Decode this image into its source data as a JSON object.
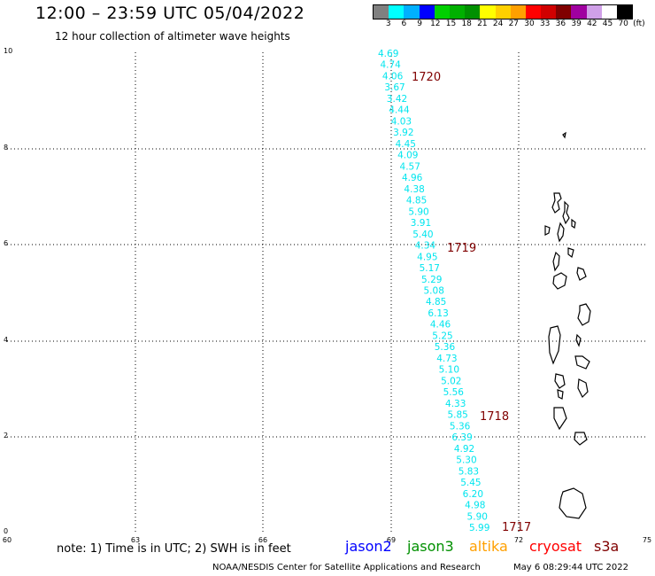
{
  "header": {
    "title": "12:00 – 23:59 UTC 05/04/2022",
    "subtitle": "12 hour collection of altimeter wave heights"
  },
  "color_scale": {
    "labels": [
      "3",
      "6",
      "9",
      "12",
      "15",
      "18",
      "21",
      "24",
      "27",
      "30",
      "33",
      "36",
      "39",
      "42",
      "45",
      "70",
      "(ft)"
    ],
    "colors": [
      "#808080",
      "#00ffff",
      "#00b0ff",
      "#0000ff",
      "#00d000",
      "#00b000",
      "#009000",
      "#ffff00",
      "#ffd000",
      "#ffa000",
      "#ff0000",
      "#d00000",
      "#800000",
      "#a000a0",
      "#d0a0e8",
      "#ffffff",
      "#000000"
    ]
  },
  "map": {
    "x_ticks": [
      "60",
      "63",
      "66",
      "69",
      "72",
      "75"
    ],
    "y_ticks": [
      "10",
      "8",
      "6",
      "4",
      "2",
      "0"
    ],
    "track_color": "#00e5ee",
    "track_values": [
      "4.69",
      "4.74",
      "4.06",
      "3.67",
      "3.42",
      "4.44",
      "4.03",
      "3.92",
      "4.45",
      "4.09",
      "4.57",
      "4.96",
      "4.38",
      "4.85",
      "5.90",
      "3.91",
      "5.40",
      "4.34",
      "4.95",
      "5.17",
      "5.29",
      "5.08",
      "4.85",
      "6.13",
      "4.46",
      "5.25",
      "5.36",
      "4.73",
      "5.10",
      "5.02",
      "5.56",
      "4.33",
      "5.85",
      "5.36",
      "6.39",
      "4.92",
      "5.30",
      "5.83",
      "5.45",
      "6.20",
      "4.98",
      "5.90",
      "5.99"
    ],
    "time_labels": [
      "1720",
      "1719",
      "1718",
      "1717"
    ],
    "time_color": "#800000"
  },
  "footer": {
    "note": "note: 1) Time is in UTC; 2) SWH is in feet",
    "satellites": [
      {
        "name": "jason2",
        "color": "#0000ff"
      },
      {
        "name": "jason3",
        "color": "#009000"
      },
      {
        "name": "altika",
        "color": "#ffa000"
      },
      {
        "name": "cryosat",
        "color": "#ff0000"
      },
      {
        "name": "s3a",
        "color": "#800000"
      }
    ],
    "credit": "NOAA/NESDIS Center for Satellite Applications and Research",
    "timestamp": "May  6 08:29:44 UTC 2022"
  }
}
